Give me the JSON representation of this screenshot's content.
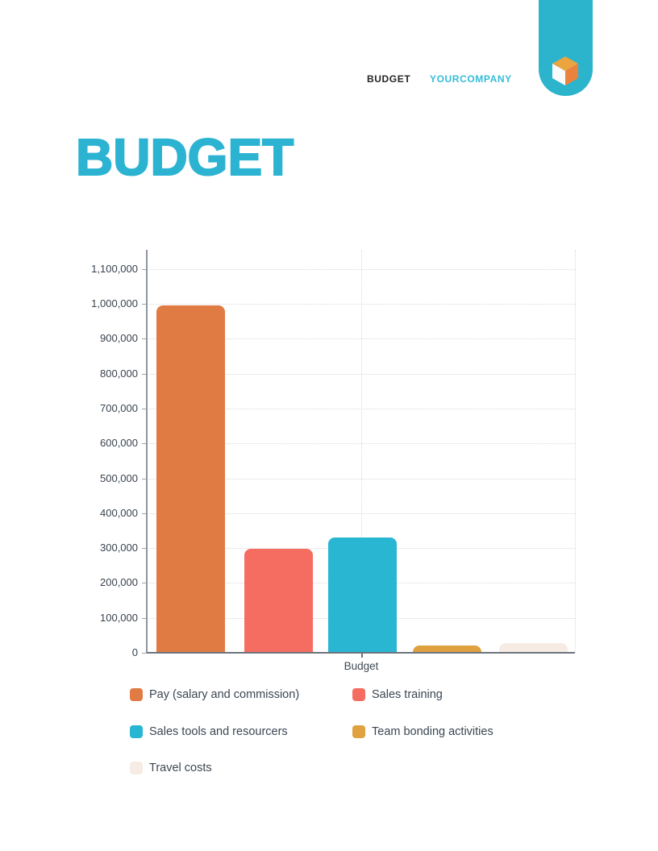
{
  "header": {
    "doc_label": "BUDGET",
    "company": "YOURCOMPANY",
    "company_color": "#36bcd8",
    "logo": {
      "pill_color": "#2db4cd",
      "cube_top_color": "#eca43f",
      "cube_right_color": "#ea823d",
      "cube_left_color": "#fafafa"
    }
  },
  "title": {
    "text": "BUDGET",
    "color": "#2cb3d2"
  },
  "chart_data": {
    "type": "bar",
    "title": "",
    "xlabel": "Budget",
    "ylabel": "",
    "categories": [
      "Budget"
    ],
    "series": [
      {
        "name": "Pay (salary and commission)",
        "values": [
          995000
        ],
        "color": "#e07b43"
      },
      {
        "name": "Sales training",
        "values": [
          297000
        ],
        "color": "#f56d61"
      },
      {
        "name": "Sales tools and resourcers",
        "values": [
          330000
        ],
        "color": "#29b6d2"
      },
      {
        "name": "Team bonding activities",
        "values": [
          20000
        ],
        "color": "#dfa23f"
      },
      {
        "name": "Travel costs",
        "values": [
          28000
        ],
        "color": "#f6ece3"
      }
    ],
    "ylim": [
      0,
      1150000
    ],
    "yticks": [
      0,
      100000,
      200000,
      300000,
      400000,
      500000,
      600000,
      700000,
      800000,
      900000,
      1000000,
      1100000
    ],
    "ytick_labels": [
      "0",
      "100,000",
      "200,000",
      "300,000",
      "400,000",
      "500,000",
      "600,000",
      "700,000",
      "800,000",
      "900,000",
      "1,000,000",
      "1,100,000"
    ],
    "grid": "dotted horizontal at each tick; dotted vertical at category center and right edge",
    "legend_position": "bottom, two columns"
  }
}
